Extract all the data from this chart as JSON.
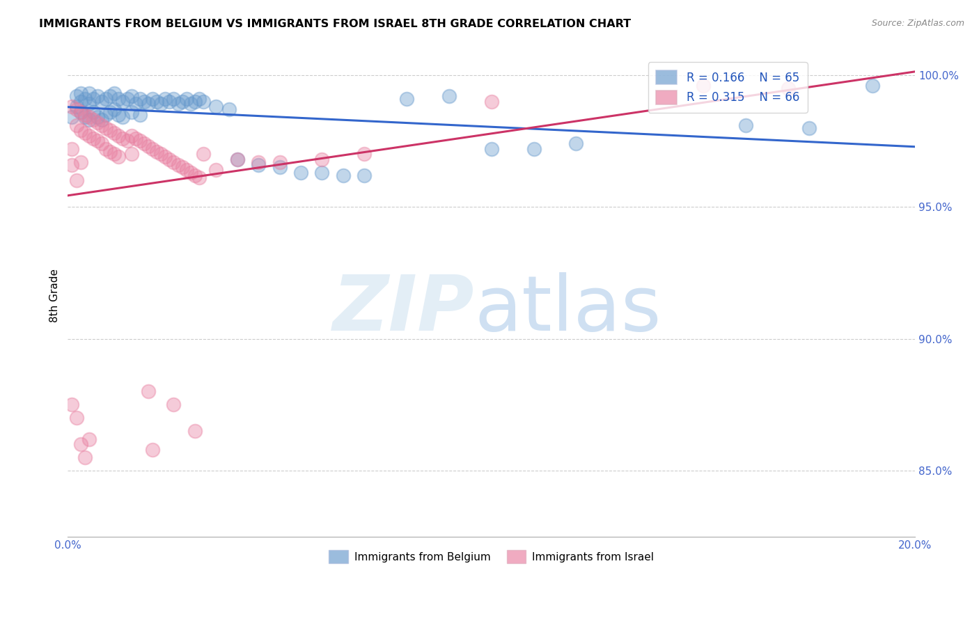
{
  "title": "IMMIGRANTS FROM BELGIUM VS IMMIGRANTS FROM ISRAEL 8TH GRADE CORRELATION CHART",
  "source": "Source: ZipAtlas.com",
  "ylabel": "8th Grade",
  "xlim": [
    0.0,
    0.2
  ],
  "ylim": [
    0.825,
    1.008
  ],
  "xticks": [
    0.0,
    0.05,
    0.1,
    0.15,
    0.2
  ],
  "xticklabels": [
    "0.0%",
    "",
    "",
    "",
    "20.0%"
  ],
  "yticks": [
    0.85,
    0.9,
    0.95,
    1.0
  ],
  "yticklabels": [
    "85.0%",
    "90.0%",
    "95.0%",
    "100.0%"
  ],
  "belgium_color": "#6699cc",
  "israel_color": "#e87fa0",
  "belgium_R": 0.166,
  "belgium_N": 65,
  "israel_R": 0.315,
  "israel_N": 66,
  "legend_label_belgium": "Immigrants from Belgium",
  "legend_label_israel": "Immigrants from Israel",
  "bel_x": [
    0.001,
    0.002,
    0.002,
    0.003,
    0.003,
    0.003,
    0.004,
    0.004,
    0.005,
    0.005,
    0.005,
    0.006,
    0.006,
    0.007,
    0.007,
    0.008,
    0.008,
    0.009,
    0.009,
    0.01,
    0.01,
    0.011,
    0.011,
    0.012,
    0.012,
    0.013,
    0.013,
    0.014,
    0.015,
    0.015,
    0.016,
    0.017,
    0.017,
    0.018,
    0.019,
    0.02,
    0.021,
    0.022,
    0.023,
    0.024,
    0.025,
    0.026,
    0.027,
    0.028,
    0.029,
    0.03,
    0.031,
    0.032,
    0.035,
    0.038,
    0.04,
    0.045,
    0.05,
    0.055,
    0.06,
    0.065,
    0.07,
    0.08,
    0.09,
    0.1,
    0.11,
    0.12,
    0.16,
    0.175,
    0.19
  ],
  "bel_y": [
    0.984,
    0.992,
    0.988,
    0.993,
    0.99,
    0.986,
    0.991,
    0.984,
    0.993,
    0.989,
    0.983,
    0.991,
    0.986,
    0.992,
    0.984,
    0.99,
    0.983,
    0.991,
    0.985,
    0.992,
    0.986,
    0.993,
    0.987,
    0.991,
    0.985,
    0.99,
    0.984,
    0.991,
    0.992,
    0.986,
    0.989,
    0.991,
    0.985,
    0.99,
    0.989,
    0.991,
    0.99,
    0.989,
    0.991,
    0.99,
    0.991,
    0.989,
    0.99,
    0.991,
    0.989,
    0.99,
    0.991,
    0.99,
    0.988,
    0.987,
    0.968,
    0.966,
    0.965,
    0.963,
    0.963,
    0.962,
    0.962,
    0.991,
    0.992,
    0.972,
    0.972,
    0.974,
    0.981,
    0.98,
    0.996
  ],
  "isr_x": [
    0.001,
    0.001,
    0.001,
    0.002,
    0.002,
    0.002,
    0.003,
    0.003,
    0.003,
    0.004,
    0.004,
    0.005,
    0.005,
    0.006,
    0.006,
    0.007,
    0.007,
    0.008,
    0.008,
    0.009,
    0.009,
    0.01,
    0.01,
    0.011,
    0.011,
    0.012,
    0.012,
    0.013,
    0.014,
    0.015,
    0.015,
    0.016,
    0.017,
    0.018,
    0.019,
    0.02,
    0.021,
    0.022,
    0.023,
    0.024,
    0.025,
    0.026,
    0.027,
    0.028,
    0.029,
    0.03,
    0.031,
    0.032,
    0.035,
    0.04,
    0.045,
    0.05,
    0.06,
    0.07,
    0.1,
    0.15,
    0.001,
    0.002,
    0.003,
    0.004,
    0.005,
    0.019,
    0.025,
    0.03,
    0.02,
    0.17
  ],
  "isr_y": [
    0.988,
    0.972,
    0.966,
    0.987,
    0.981,
    0.96,
    0.986,
    0.979,
    0.967,
    0.985,
    0.978,
    0.984,
    0.977,
    0.983,
    0.976,
    0.982,
    0.975,
    0.981,
    0.974,
    0.98,
    0.972,
    0.979,
    0.971,
    0.978,
    0.97,
    0.977,
    0.969,
    0.976,
    0.975,
    0.977,
    0.97,
    0.976,
    0.975,
    0.974,
    0.973,
    0.972,
    0.971,
    0.97,
    0.969,
    0.968,
    0.967,
    0.966,
    0.965,
    0.964,
    0.963,
    0.962,
    0.961,
    0.97,
    0.964,
    0.968,
    0.967,
    0.967,
    0.968,
    0.97,
    0.99,
    0.996,
    0.875,
    0.87,
    0.86,
    0.855,
    0.862,
    0.88,
    0.875,
    0.865,
    0.858,
    0.995
  ]
}
